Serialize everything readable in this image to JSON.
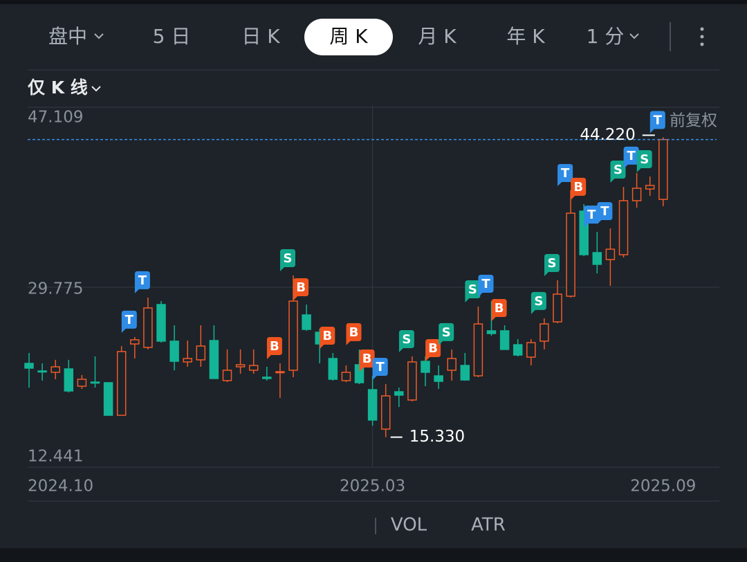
{
  "tabs": [
    "盘中",
    "5 日",
    "日 K",
    "周 K",
    "月 K",
    "年 K",
    "1 分"
  ],
  "active_tab": 3,
  "view_mode": "仅 K 线",
  "adjust": "前复权",
  "indicators": [
    "VOL",
    "ATR"
  ],
  "chart_data": {
    "type": "candlestick",
    "up_color": "#f05a28",
    "down_color": "#13b596",
    "categories": [
      "2024.10",
      null,
      null,
      null,
      null,
      null,
      null,
      null,
      null,
      null,
      null,
      null,
      null,
      null,
      null,
      null,
      null,
      null,
      null,
      null,
      null,
      null,
      null,
      null,
      null,
      null,
      "2025.03",
      null,
      null,
      null,
      null,
      null,
      null,
      null,
      null,
      null,
      null,
      null,
      null,
      null,
      null,
      null,
      null,
      null,
      null,
      null,
      null,
      null,
      "2025.09"
    ],
    "open": [
      22.44,
      21.71,
      21.58,
      21.91,
      20.24,
      20.64,
      20.58,
      17.44,
      24.31,
      23.98,
      28.11,
      24.58,
      22.58,
      22.78,
      24.64,
      20.78,
      22.11,
      21.78,
      21.11,
      21.58,
      21.78,
      27.11,
      25.44,
      22.91,
      20.78,
      22.31,
      19.91,
      16.11,
      19.71,
      18.91,
      22.64,
      21.24,
      21.78,
      22.24,
      21.24,
      25.58,
      25.58,
      24.24,
      23.04,
      24.58,
      26.44,
      28.91,
      37.11,
      33.11,
      32.44,
      32.91,
      38.11,
      39.24,
      38.24
    ],
    "high": [
      23.44,
      22.44,
      22.78,
      22.78,
      21.31,
      23.11,
      20.58,
      24.11,
      24.98,
      28.78,
      28.44,
      26.11,
      24.64,
      26.11,
      26.11,
      23.78,
      23.78,
      23.78,
      22.11,
      22.44,
      30.91,
      28.11,
      25.78,
      23.44,
      22.24,
      23.78,
      21.24,
      20.44,
      20.11,
      23.11,
      23.11,
      22.24,
      23.78,
      23.44,
      27.91,
      28.44,
      26.11,
      24.78,
      24.78,
      26.78,
      30.44,
      39.11,
      37.78,
      35.11,
      35.44,
      39.44,
      40.78,
      40.44,
      44.22
    ],
    "low": [
      20.11,
      20.78,
      20.91,
      19.64,
      19.98,
      20.11,
      17.44,
      17.44,
      22.91,
      23.78,
      24.44,
      21.78,
      22.11,
      22.11,
      20.98,
      20.64,
      21.44,
      21.44,
      20.78,
      19.11,
      21.11,
      25.58,
      22.44,
      20.78,
      20.64,
      20.44,
      16.44,
      15.33,
      18.24,
      18.78,
      20.24,
      19.98,
      20.78,
      20.78,
      21.11,
      25.11,
      23.78,
      23.11,
      22.24,
      23.78,
      26.31,
      28.78,
      32.78,
      31.11,
      29.91,
      32.64,
      37.44,
      38.58,
      37.58
    ],
    "close": [
      21.98,
      21.64,
      22.11,
      19.78,
      20.91,
      20.58,
      17.44,
      23.58,
      24.71,
      27.78,
      24.58,
      22.64,
      22.91,
      24.11,
      20.98,
      21.78,
      22.31,
      22.24,
      20.98,
      21.64,
      28.44,
      25.71,
      24.31,
      20.91,
      21.58,
      20.58,
      16.98,
      19.31,
      19.38,
      22.58,
      21.58,
      20.71,
      22.91,
      20.84,
      26.24,
      25.31,
      23.78,
      23.24,
      24.44,
      26.24,
      29.11,
      36.91,
      32.91,
      31.98,
      33.44,
      38.11,
      39.31,
      39.58,
      44.0
    ],
    "max_label": "44.220",
    "min_label": "15.330",
    "ylim": [
      12.441,
      47.109
    ],
    "yticks": [
      12.441,
      29.775,
      47.109
    ],
    "grid": true,
    "markers": [
      {
        "index": 8,
        "label": "T",
        "color": "#2f8ce6"
      },
      {
        "index": 9,
        "label": "T",
        "color": "#2f8ce6"
      },
      {
        "index": 19,
        "label": "B",
        "color": "#f0541e"
      },
      {
        "index": 20,
        "label": "S",
        "color": "#12a88c"
      },
      {
        "index": 21,
        "label": "B",
        "color": "#f0541e"
      },
      {
        "index": 23,
        "label": "B",
        "color": "#f0541e"
      },
      {
        "index": 25,
        "label": "B",
        "color": "#f0541e"
      },
      {
        "index": 26,
        "label": "B",
        "color": "#f0541e"
      },
      {
        "index": 27,
        "label": "T",
        "color": "#2f8ce6"
      },
      {
        "index": 29,
        "label": "S",
        "color": "#12a88c"
      },
      {
        "index": 31,
        "label": "B",
        "color": "#f0541e"
      },
      {
        "index": 32,
        "label": "S",
        "color": "#12a88c"
      },
      {
        "index": 34,
        "label": "S",
        "color": "#12a88c"
      },
      {
        "index": 35,
        "label": "T",
        "color": "#2f8ce6"
      },
      {
        "index": 36,
        "label": "B",
        "color": "#f0541e"
      },
      {
        "index": 39,
        "label": "S",
        "color": "#12a88c"
      },
      {
        "index": 40,
        "label": "S",
        "color": "#12a88c"
      },
      {
        "index": 41,
        "label": "T",
        "color": "#2f8ce6"
      },
      {
        "index": 42,
        "label": "B",
        "color": "#f0541e"
      },
      {
        "index": 43,
        "label": "T",
        "color": "#2f8ce6"
      },
      {
        "index": 44,
        "label": "T",
        "color": "#2f8ce6"
      },
      {
        "index": 45,
        "label": "S",
        "color": "#12a88c"
      },
      {
        "index": 46,
        "label": "T",
        "color": "#2f8ce6"
      },
      {
        "index": 47,
        "label": "S",
        "color": "#12a88c"
      },
      {
        "index": 48,
        "label": "T",
        "color": "#2f8ce6"
      }
    ]
  }
}
